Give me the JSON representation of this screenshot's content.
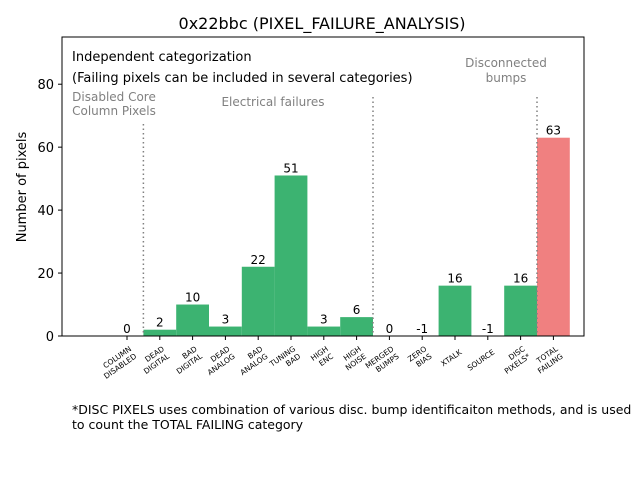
{
  "chart_data": {
    "type": "bar",
    "title": "0x22bbc (PIXEL_FAILURE_ANALYSIS)",
    "xlabel": "",
    "ylabel": "Number of pixels",
    "ylim": [
      0,
      95
    ],
    "yticks": [
      0,
      20,
      40,
      60,
      80
    ],
    "categories": [
      [
        "COLUMN",
        "DISABLED"
      ],
      [
        "DEAD",
        "DIGITAL"
      ],
      [
        "BAD",
        "DIGITAL"
      ],
      [
        "DEAD",
        "ANALOG"
      ],
      [
        "BAD",
        "ANALOG"
      ],
      [
        "TUNING",
        "BAD"
      ],
      [
        "HIGH",
        "ENC"
      ],
      [
        "HIGH",
        "NOISE"
      ],
      [
        "MERGED",
        "BUMPS"
      ],
      [
        "ZERO",
        "BIAS"
      ],
      [
        "XTALK"
      ],
      [
        "SOURCE"
      ],
      [
        "DISC",
        "PIXELS*"
      ],
      [
        "TOTAL",
        "FAILING"
      ]
    ],
    "values": [
      0,
      2,
      10,
      3,
      22,
      51,
      3,
      6,
      0,
      -1,
      16,
      -1,
      16,
      63
    ],
    "colors": {
      "default": "#3cb371",
      "total": "#f08080",
      "divider": "#808080",
      "annotation": "#808080"
    },
    "dividers_after_index": [
      0,
      7,
      12
    ],
    "legend_text": [
      "Independent categorization",
      "(Failing pixels can be included in several categories)"
    ],
    "section_labels": [
      {
        "lines": [
          "Disabled Core",
          "Column Pixels"
        ]
      },
      {
        "lines": [
          "Electrical failures"
        ]
      },
      {
        "lines": [
          "Disconnected",
          "bumps"
        ]
      }
    ]
  },
  "footnote": {
    "line1": "*DISC PIXELS uses combination of various disc. bump identificaiton methods, and is used",
    "line2": "to count the TOTAL FAILING category"
  }
}
